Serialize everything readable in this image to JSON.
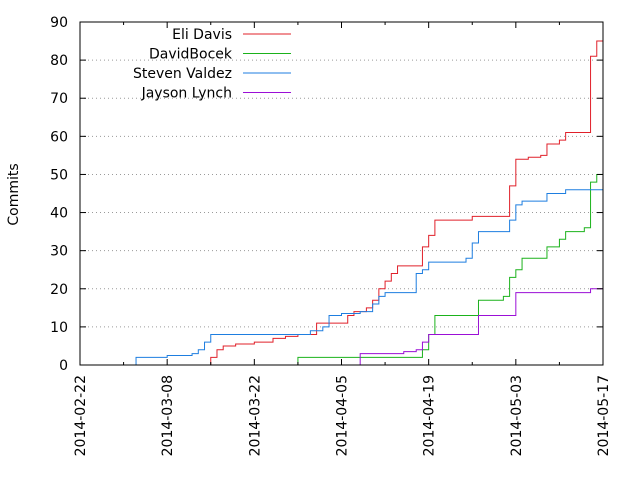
{
  "chart_data": {
    "type": "line",
    "xlabel": "",
    "ylabel": "Commits",
    "ylim": [
      0,
      90
    ],
    "ytick_step": 10,
    "xlim": [
      "2014-02-22",
      "2014-05-17"
    ],
    "xticks": [
      "2014-02-22",
      "2014-03-08",
      "2014-03-22",
      "2014-04-05",
      "2014-04-19",
      "2014-05-03",
      "2014-05-17"
    ],
    "grid": true,
    "legend_position": "top-left",
    "series": [
      {
        "name": "Eli Davis",
        "color": "#e0202a",
        "points": [
          [
            "2014-03-14",
            0
          ],
          [
            "2014-03-15",
            2
          ],
          [
            "2014-03-16",
            4
          ],
          [
            "2014-03-17",
            5
          ],
          [
            "2014-03-19",
            5.5
          ],
          [
            "2014-03-22",
            6
          ],
          [
            "2014-03-25",
            7
          ],
          [
            "2014-03-27",
            7.5
          ],
          [
            "2014-03-29",
            8
          ],
          [
            "2014-03-31",
            8
          ],
          [
            "2014-04-01",
            11
          ],
          [
            "2014-04-05",
            11
          ],
          [
            "2014-04-06",
            13
          ],
          [
            "2014-04-07",
            14
          ],
          [
            "2014-04-09",
            15
          ],
          [
            "2014-04-10",
            17
          ],
          [
            "2014-04-11",
            20
          ],
          [
            "2014-04-12",
            22
          ],
          [
            "2014-04-13",
            24
          ],
          [
            "2014-04-14",
            26
          ],
          [
            "2014-04-17",
            26
          ],
          [
            "2014-04-18",
            31
          ],
          [
            "2014-04-19",
            34
          ],
          [
            "2014-04-20",
            38
          ],
          [
            "2014-04-25",
            38
          ],
          [
            "2014-04-26",
            39
          ],
          [
            "2014-05-01",
            39
          ],
          [
            "2014-05-02",
            47
          ],
          [
            "2014-05-03",
            54
          ],
          [
            "2014-05-05",
            54.5
          ],
          [
            "2014-05-07",
            55
          ],
          [
            "2014-05-08",
            58
          ],
          [
            "2014-05-10",
            59
          ],
          [
            "2014-05-11",
            61
          ],
          [
            "2014-05-14",
            61
          ],
          [
            "2014-05-15",
            81
          ],
          [
            "2014-05-16",
            85
          ],
          [
            "2014-05-17",
            86
          ]
        ]
      },
      {
        "name": "DavidBocek",
        "color": "#1bb21b",
        "points": [
          [
            "2014-03-29",
            0
          ],
          [
            "2014-03-29",
            2
          ],
          [
            "2014-04-17",
            2
          ],
          [
            "2014-04-18",
            4
          ],
          [
            "2014-04-19",
            8
          ],
          [
            "2014-04-20",
            13
          ],
          [
            "2014-04-26",
            13
          ],
          [
            "2014-04-27",
            17
          ],
          [
            "2014-05-01",
            18
          ],
          [
            "2014-05-02",
            23
          ],
          [
            "2014-05-03",
            25
          ],
          [
            "2014-05-04",
            28
          ],
          [
            "2014-05-07",
            28
          ],
          [
            "2014-05-08",
            31
          ],
          [
            "2014-05-10",
            33
          ],
          [
            "2014-05-11",
            35
          ],
          [
            "2014-05-14",
            36
          ],
          [
            "2014-05-15",
            48
          ],
          [
            "2014-05-16",
            50
          ],
          [
            "2014-05-17",
            51
          ]
        ]
      },
      {
        "name": "Steven Valdez",
        "color": "#1e7ee0",
        "points": [
          [
            "2014-03-03",
            0
          ],
          [
            "2014-03-03",
            2
          ],
          [
            "2014-03-08",
            2.5
          ],
          [
            "2014-03-12",
            3
          ],
          [
            "2014-03-13",
            4
          ],
          [
            "2014-03-14",
            6
          ],
          [
            "2014-03-15",
            8
          ],
          [
            "2014-03-22",
            8
          ],
          [
            "2014-03-30",
            8
          ],
          [
            "2014-03-31",
            9
          ],
          [
            "2014-04-02",
            10
          ],
          [
            "2014-04-03",
            13
          ],
          [
            "2014-04-05",
            13.5
          ],
          [
            "2014-04-08",
            14
          ],
          [
            "2014-04-10",
            16
          ],
          [
            "2014-04-11",
            18
          ],
          [
            "2014-04-12",
            19
          ],
          [
            "2014-04-16",
            19
          ],
          [
            "2014-04-17",
            24
          ],
          [
            "2014-04-18",
            25
          ],
          [
            "2014-04-19",
            27
          ],
          [
            "2014-04-25",
            28
          ],
          [
            "2014-04-26",
            32
          ],
          [
            "2014-04-27",
            35
          ],
          [
            "2014-05-01",
            35
          ],
          [
            "2014-05-02",
            38
          ],
          [
            "2014-05-03",
            42
          ],
          [
            "2014-05-04",
            43
          ],
          [
            "2014-05-07",
            43
          ],
          [
            "2014-05-08",
            45
          ],
          [
            "2014-05-11",
            46
          ],
          [
            "2014-05-17",
            46
          ]
        ]
      },
      {
        "name": "Jayson Lynch",
        "color": "#9b0fd6",
        "points": [
          [
            "2014-04-08",
            0
          ],
          [
            "2014-04-08",
            3
          ],
          [
            "2014-04-15",
            3.5
          ],
          [
            "2014-04-17",
            4
          ],
          [
            "2014-04-18",
            6
          ],
          [
            "2014-04-19",
            8
          ],
          [
            "2014-04-26",
            8
          ],
          [
            "2014-04-27",
            13
          ],
          [
            "2014-05-02",
            13
          ],
          [
            "2014-05-03",
            19
          ],
          [
            "2014-05-14",
            19
          ],
          [
            "2014-05-15",
            20
          ],
          [
            "2014-05-17",
            20
          ]
        ]
      }
    ]
  }
}
